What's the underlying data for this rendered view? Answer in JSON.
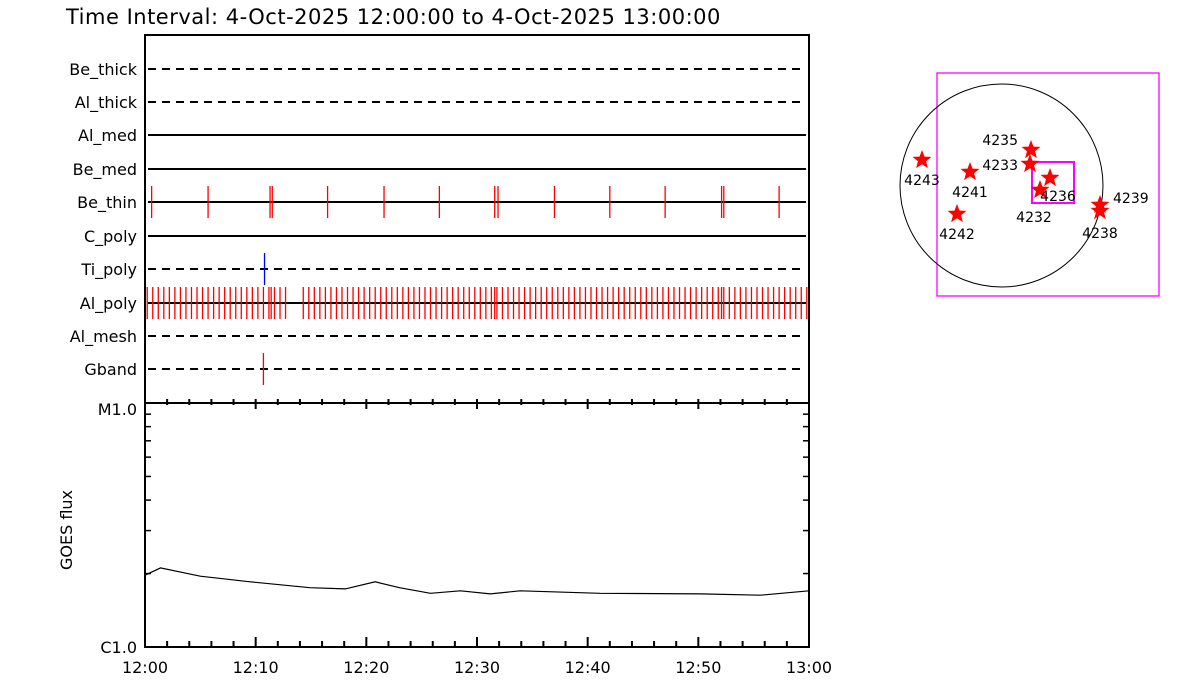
{
  "title": "Time Interval:  4-Oct-2025 12:00:00 to  4-Oct-2025 13:00:00",
  "chart_data": [
    {
      "type": "timeline",
      "x_range_minutes_after_1200": [
        0,
        60
      ],
      "rows": [
        {
          "label": "Be_thick",
          "line": "dashed",
          "events": [],
          "color": "#ff0000"
        },
        {
          "label": "Al_thick",
          "line": "dashed",
          "events": [],
          "color": "#ff0000"
        },
        {
          "label": "Al_med",
          "line": "solid",
          "events": [],
          "color": "#ff0000"
        },
        {
          "label": "Be_med",
          "line": "solid",
          "events": [],
          "color": "#ff0000"
        },
        {
          "label": "Be_thin",
          "line": "solid",
          "color": "#ff0000",
          "events": [
            0.6,
            5.7,
            11.3,
            11.5,
            16.5,
            21.6,
            26.6,
            31.6,
            31.9,
            37.0,
            42.0,
            47.0,
            52.1,
            52.3,
            57.3
          ]
        },
        {
          "label": "C_poly",
          "line": "solid",
          "events": [],
          "color": "#ff0000"
        },
        {
          "label": "Ti_poly",
          "line": "dashed",
          "color": "#0000ff",
          "events": [
            10.8
          ]
        },
        {
          "label": "Al_poly",
          "line": "solid",
          "color": "#ff0000",
          "events": [
            0.2,
            0.7,
            1.2,
            1.7,
            2.2,
            2.7,
            3.2,
            3.7,
            4.2,
            4.7,
            5.2,
            5.7,
            6.2,
            6.7,
            7.2,
            7.7,
            8.2,
            8.7,
            9.2,
            9.7,
            10.2,
            10.7,
            11.2,
            11.4,
            11.7,
            12.2,
            12.7,
            14.3,
            14.8,
            15.3,
            15.8,
            16.3,
            16.8,
            17.3,
            17.8,
            18.3,
            18.8,
            19.3,
            19.8,
            20.3,
            20.8,
            21.3,
            21.8,
            22.3,
            22.8,
            23.3,
            23.8,
            24.3,
            24.8,
            25.3,
            25.8,
            26.3,
            26.8,
            27.3,
            27.8,
            28.3,
            28.8,
            29.3,
            29.8,
            30.3,
            30.8,
            31.3,
            31.6,
            31.8,
            32.3,
            32.8,
            33.3,
            33.8,
            34.3,
            34.8,
            35.3,
            35.8,
            36.3,
            36.8,
            37.3,
            37.8,
            38.3,
            38.8,
            39.3,
            39.8,
            40.3,
            40.8,
            41.3,
            41.8,
            42.3,
            42.8,
            43.3,
            43.8,
            44.3,
            44.8,
            45.3,
            45.8,
            46.3,
            46.8,
            47.3,
            47.8,
            48.3,
            48.8,
            49.3,
            49.8,
            50.3,
            50.8,
            51.3,
            51.8,
            52.1,
            52.3,
            52.8,
            53.3,
            53.8,
            54.3,
            54.8,
            55.3,
            55.8,
            56.3,
            56.8,
            57.3,
            57.8,
            58.3,
            58.8,
            59.3,
            59.8
          ]
        },
        {
          "label": "Al_mesh",
          "line": "dashed",
          "events": [],
          "color": "#ff0000"
        },
        {
          "label": "Gband",
          "line": "dashed",
          "color": "#ff0000",
          "events": [
            10.7
          ]
        }
      ]
    },
    {
      "type": "line",
      "ylabel": "GOES flux",
      "yscale": "log",
      "ylim": [
        1e-06,
        1e-05
      ],
      "ytick_labels": [
        "C1.0",
        "M1.0"
      ],
      "xtick_labels": [
        "12:00",
        "12:10",
        "12:20",
        "12:30",
        "12:40",
        "12:50",
        "13:00"
      ],
      "x_minutes": [
        0,
        1.4,
        5.0,
        9.5,
        14.9,
        18.1,
        20.8,
        23.0,
        25.8,
        28.5,
        31.2,
        33.9,
        41.1,
        50.2,
        55.6,
        60
      ],
      "flux": [
        1.97e-06,
        2.11e-06,
        1.95e-06,
        1.85e-06,
        1.75e-06,
        1.73e-06,
        1.85e-06,
        1.75e-06,
        1.66e-06,
        1.7e-06,
        1.65e-06,
        1.7e-06,
        1.66e-06,
        1.65e-06,
        1.63e-06,
        1.7e-06
      ],
      "color": "#000000"
    },
    {
      "type": "scatter",
      "description_markers": "star",
      "marker_color": "#ff0000",
      "box_color": "#ff00ff",
      "active_regions": [
        "4243",
        "4241",
        "4242",
        "4235",
        "4233",
        "4236",
        "4232",
        "4239",
        "4238"
      ]
    }
  ]
}
